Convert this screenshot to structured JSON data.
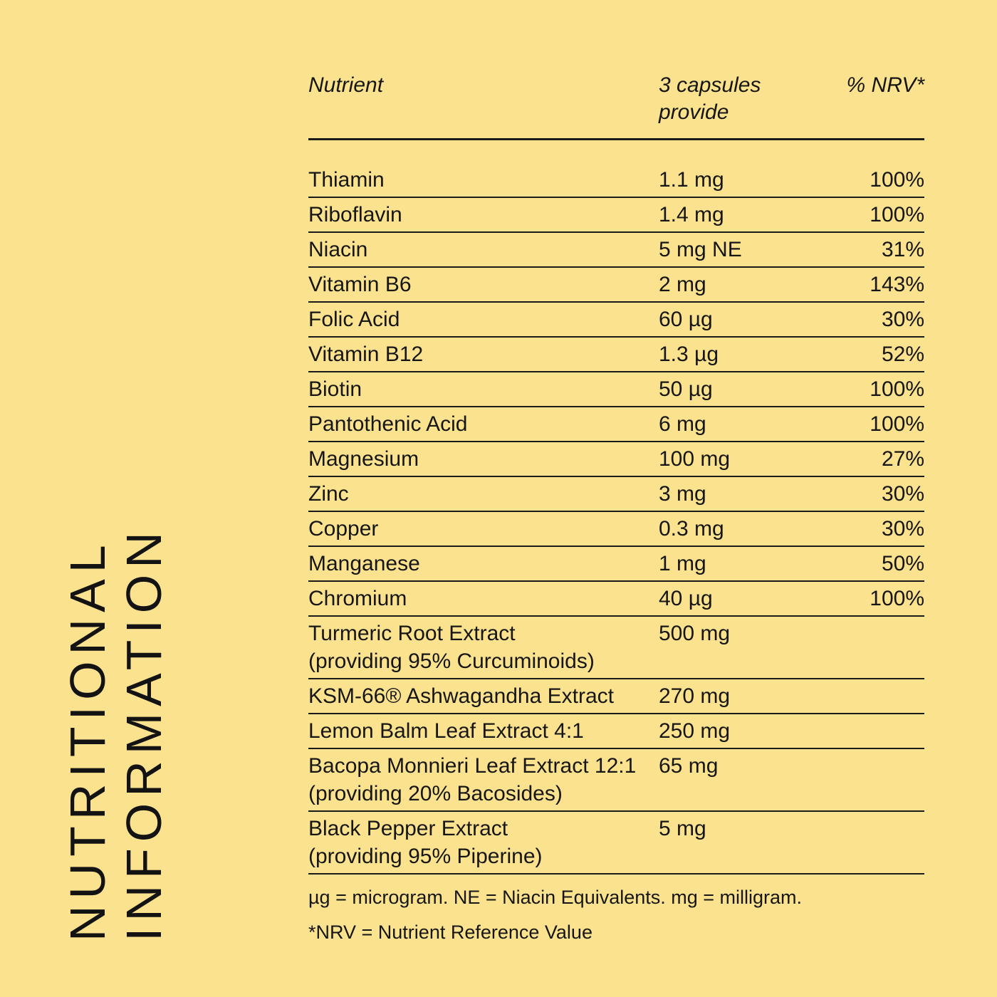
{
  "colors": {
    "background": "#FBE28E",
    "text": "#161616",
    "rule": "#1a1a1a"
  },
  "title": {
    "line1": "NUTRITIONAL",
    "line2": "INFORMATION"
  },
  "table": {
    "headers": {
      "nutrient": "Nutrient",
      "amount": "3 capsules provide",
      "nrv": "% NRV*"
    },
    "rows": [
      {
        "name": "Thiamin",
        "sub": "",
        "amount": "1.1 mg",
        "nrv": "100%"
      },
      {
        "name": "Riboflavin",
        "sub": "",
        "amount": "1.4 mg",
        "nrv": "100%"
      },
      {
        "name": "Niacin",
        "sub": "",
        "amount": "5 mg NE",
        "nrv": "31%"
      },
      {
        "name": "Vitamin B6",
        "sub": "",
        "amount": "2 mg",
        "nrv": "143%"
      },
      {
        "name": "Folic Acid",
        "sub": "",
        "amount": "60 µg",
        "nrv": "30%"
      },
      {
        "name": "Vitamin B12",
        "sub": "",
        "amount": "1.3 µg",
        "nrv": "52%"
      },
      {
        "name": "Biotin",
        "sub": "",
        "amount": "50 µg",
        "nrv": "100%"
      },
      {
        "name": "Pantothenic Acid",
        "sub": "",
        "amount": "6 mg",
        "nrv": "100%"
      },
      {
        "name": "Magnesium",
        "sub": "",
        "amount": "100 mg",
        "nrv": "27%"
      },
      {
        "name": "Zinc",
        "sub": "",
        "amount": "3 mg",
        "nrv": "30%"
      },
      {
        "name": "Copper",
        "sub": "",
        "amount": "0.3 mg",
        "nrv": "30%"
      },
      {
        "name": "Manganese",
        "sub": "",
        "amount": "1 mg",
        "nrv": "50%"
      },
      {
        "name": "Chromium",
        "sub": "",
        "amount": "40 µg",
        "nrv": "100%"
      },
      {
        "name": "Turmeric Root Extract",
        "sub": "(providing 95% Curcuminoids)",
        "amount": "500 mg",
        "nrv": ""
      },
      {
        "name": "KSM-66® Ashwagandha Extract",
        "sub": "",
        "amount": "270 mg",
        "nrv": ""
      },
      {
        "name": "Lemon Balm Leaf Extract 4:1",
        "sub": "",
        "amount": "250 mg",
        "nrv": ""
      },
      {
        "name": "Bacopa Monnieri Leaf Extract 12:1",
        "sub": "(providing 20% Bacosides)",
        "amount": "65 mg",
        "nrv": ""
      },
      {
        "name": "Black Pepper Extract",
        "sub": "(providing 95% Piperine)",
        "amount": "5 mg",
        "nrv": ""
      }
    ],
    "footnotes": [
      "µg = microgram. NE = Niacin Equivalents. mg = milligram.",
      "*NRV = Nutrient Reference Value"
    ]
  }
}
